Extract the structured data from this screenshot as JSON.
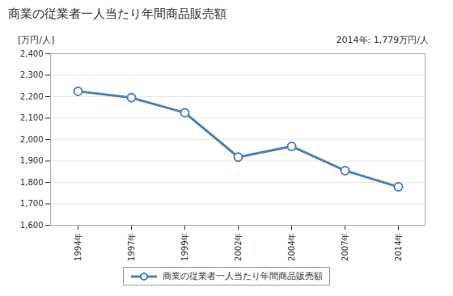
{
  "chart_data": {
    "type": "line",
    "title": "商業の従業者一人当たり年間商品販売額",
    "y_label": "[万円/人]",
    "annotation": "2014年: 1,779万円/人",
    "categories": [
      "1994年",
      "1997年",
      "1999年",
      "2002年",
      "2004年",
      "2007年",
      "2014年"
    ],
    "series": [
      {
        "name": "商業の従業者一人当たり年間商品販売額",
        "color": "#4f81bd",
        "marker": "circle",
        "values": [
          2225,
          2195,
          2125,
          1918,
          1968,
          1855,
          1779
        ]
      }
    ],
    "ylim": [
      1600,
      2400
    ],
    "yticks": [
      {
        "value": 1600,
        "label": "1,600"
      },
      {
        "value": 1700,
        "label": "1,700"
      },
      {
        "value": 1800,
        "label": "1,800"
      },
      {
        "value": 1900,
        "label": "1,900"
      },
      {
        "value": 2000,
        "label": "2,000"
      },
      {
        "value": 2100,
        "label": "2,100"
      },
      {
        "value": 2200,
        "label": "2,200"
      },
      {
        "value": 2300,
        "label": "2,300"
      },
      {
        "value": 2400,
        "label": "2,400"
      }
    ],
    "grid": true,
    "legend": "bottom"
  }
}
